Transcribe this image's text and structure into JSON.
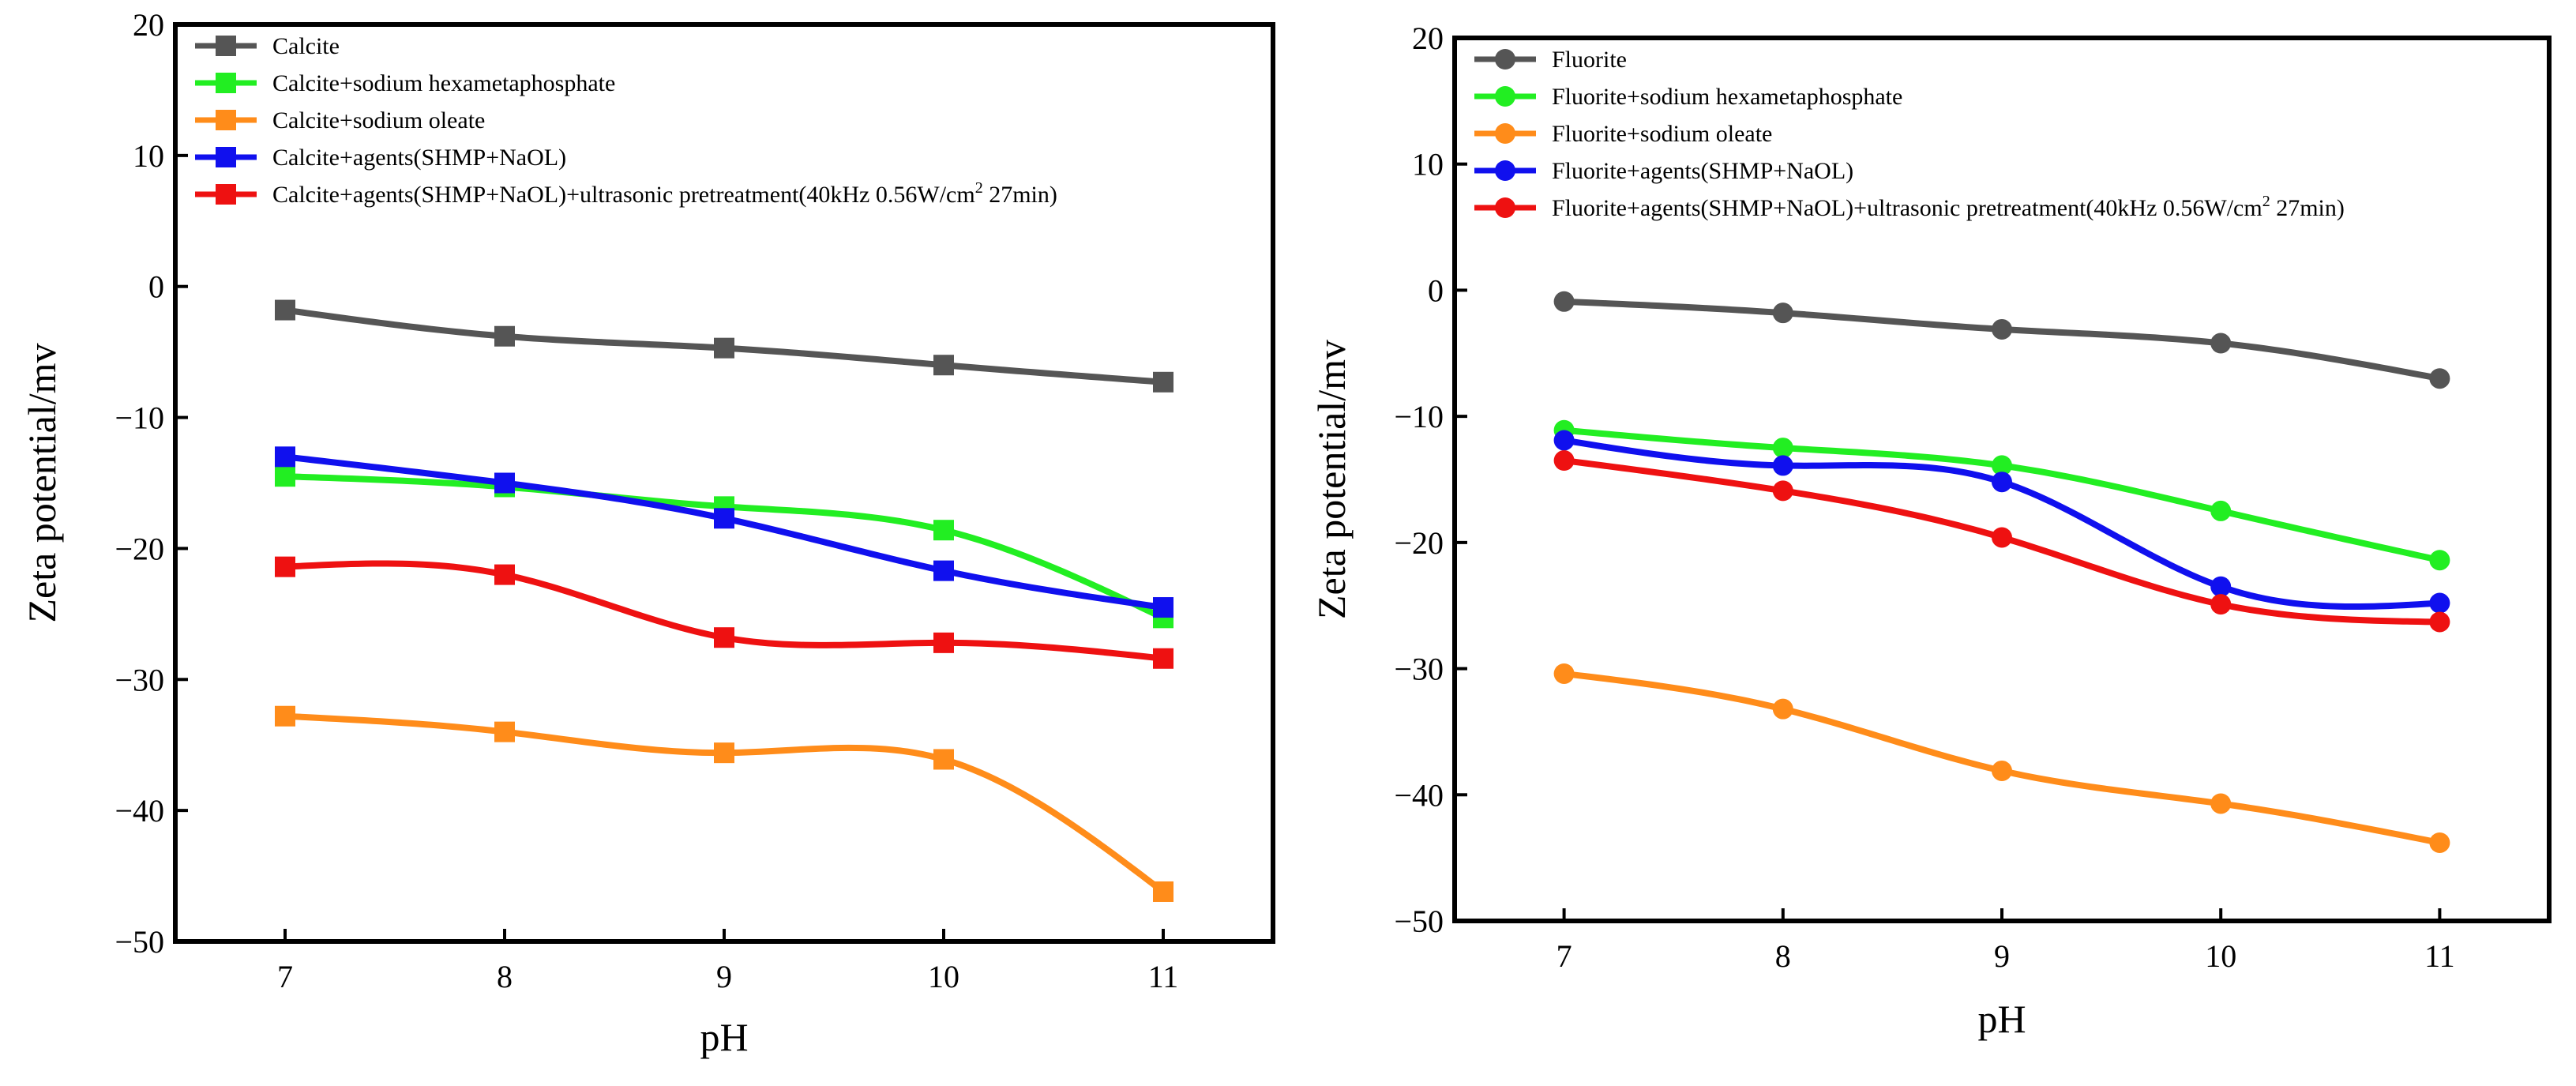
{
  "chart_data": [
    {
      "type": "line",
      "title": "",
      "xlabel": "pH",
      "ylabel": "Zeta potential/mv",
      "xlim": [
        6.5,
        11.5
      ],
      "ylim": [
        -50,
        20
      ],
      "x_ticks": [
        "7",
        "8",
        "9",
        "10",
        "11"
      ],
      "y_ticks": [
        "20",
        "10",
        "0",
        "−10",
        "−20",
        "−30",
        "−40",
        "−50"
      ],
      "marker": "square",
      "x": [
        7,
        8,
        9,
        10,
        11
      ],
      "series": [
        {
          "name": "Calcite",
          "color": "#555555",
          "values": [
            -1.8,
            -3.8,
            -4.7,
            -6.0,
            -7.3
          ]
        },
        {
          "name": "Calcite+sodium hexametaphosphate",
          "color": "#22ee22",
          "values": [
            -14.5,
            -15.3,
            -16.8,
            -18.6,
            -25.3
          ]
        },
        {
          "name": "Calcite+sodium oleate",
          "color": "#ff8c1a",
          "values": [
            -32.8,
            -34.0,
            -35.6,
            -36.1,
            -46.2
          ]
        },
        {
          "name": "Calcite+agents(SHMP+NaOL)",
          "color": "#1010ee",
          "values": [
            -13.0,
            -15.0,
            -17.7,
            -21.7,
            -24.5
          ]
        },
        {
          "name": "Calcite+agents(SHMP+NaOL)+ultrasonic pretreatment(40kHz 0.56W/cm",
          "name_sup": "2",
          "name_tail": " 27min)",
          "color": "#ee1111",
          "values": [
            -21.4,
            -22.0,
            -26.8,
            -27.2,
            -28.4
          ]
        }
      ]
    },
    {
      "type": "line",
      "title": "",
      "xlabel": "pH",
      "ylabel": "Zeta potential/mv",
      "xlim": [
        6.5,
        11.5
      ],
      "ylim": [
        -50,
        20
      ],
      "x_ticks": [
        "7",
        "8",
        "9",
        "10",
        "11"
      ],
      "y_ticks": [
        "20",
        "10",
        "0",
        "−10",
        "−20",
        "−30",
        "−40",
        "−50"
      ],
      "marker": "circle",
      "x": [
        7,
        8,
        9,
        10,
        11
      ],
      "series": [
        {
          "name": "Fluorite",
          "color": "#555555",
          "values": [
            -0.9,
            -1.8,
            -3.1,
            -4.2,
            -7.0
          ]
        },
        {
          "name": "Fluorite+sodium hexametaphosphate",
          "color": "#22ee22",
          "values": [
            -11.1,
            -12.5,
            -13.9,
            -17.5,
            -21.4
          ]
        },
        {
          "name": "Fluorite+sodium oleate",
          "color": "#ff8c1a",
          "values": [
            -30.4,
            -33.2,
            -38.1,
            -40.7,
            -43.8
          ]
        },
        {
          "name": "Fluorite+agents(SHMP+NaOL)",
          "color": "#1010ee",
          "values": [
            -11.9,
            -13.9,
            -15.2,
            -23.5,
            -24.8
          ]
        },
        {
          "name": "Fluorite+agents(SHMP+NaOL)+ultrasonic pretreatment(40kHz 0.56W/cm",
          "name_sup": "2",
          "name_tail": " 27min)",
          "color": "#ee1111",
          "values": [
            -13.5,
            -15.9,
            -19.6,
            -24.9,
            -26.3
          ]
        }
      ]
    }
  ]
}
